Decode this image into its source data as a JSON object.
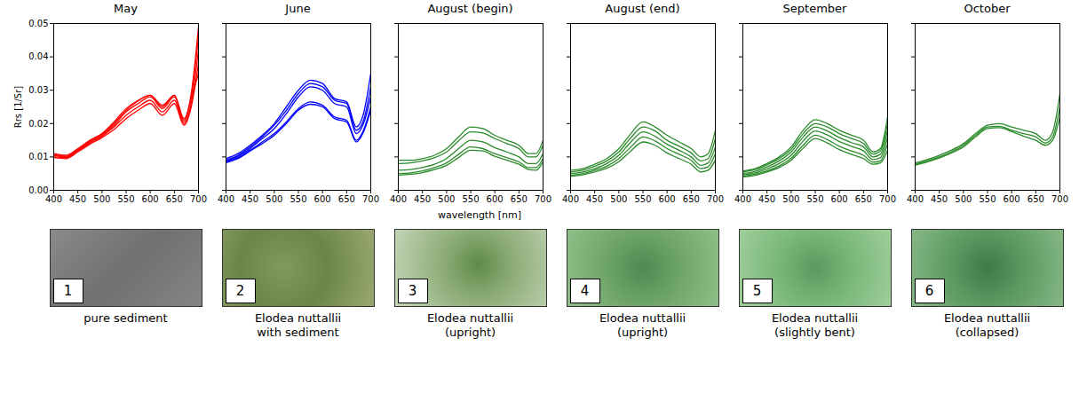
{
  "chart_data": [
    {
      "type": "line",
      "title": "May",
      "ylabel": "Rrs [1/Sr]",
      "x": [
        400,
        425,
        450,
        475,
        500,
        525,
        550,
        575,
        600,
        625,
        650,
        670,
        685,
        700
      ],
      "xlim": [
        400,
        700
      ],
      "xticks": [
        400,
        450,
        500,
        550,
        600,
        650,
        700
      ],
      "ylim": [
        0,
        0.05
      ],
      "yticks": [
        {
          "value": 0,
          "label": "0.00"
        },
        {
          "value": 0.01,
          "label": "0.01"
        },
        {
          "value": 0.02,
          "label": "0.02"
        },
        {
          "value": 0.03,
          "label": "0.03"
        },
        {
          "value": 0.04,
          "label": "0.04"
        },
        {
          "value": 0.05,
          "label": "0.05"
        }
      ],
      "series": [
        {
          "color": "#ff0000",
          "values": [
            0.011,
            0.0105,
            0.0125,
            0.015,
            0.017,
            0.0205,
            0.0245,
            0.027,
            0.0285,
            0.025,
            0.0285,
            0.0215,
            0.029,
            0.049
          ]
        },
        {
          "color": "#ff0000",
          "values": [
            0.0105,
            0.01,
            0.012,
            0.0145,
            0.0165,
            0.0195,
            0.0235,
            0.026,
            0.028,
            0.0245,
            0.028,
            0.0205,
            0.028,
            0.046
          ]
        },
        {
          "color": "#ff0000",
          "values": [
            0.01,
            0.0098,
            0.0118,
            0.0142,
            0.0162,
            0.019,
            0.0225,
            0.025,
            0.027,
            0.0235,
            0.027,
            0.02,
            0.026,
            0.042
          ]
        },
        {
          "color": "#ff0000",
          "values": [
            0.0098,
            0.0095,
            0.0115,
            0.0138,
            0.0158,
            0.0182,
            0.0215,
            0.024,
            0.026,
            0.0225,
            0.026,
            0.0195,
            0.025,
            0.038
          ]
        },
        {
          "color": "#ff0000",
          "values": [
            0.0108,
            0.0102,
            0.0122,
            0.0148,
            0.0168,
            0.02,
            0.024,
            0.0268,
            0.0285,
            0.0255,
            0.0285,
            0.021,
            0.0275,
            0.035
          ]
        }
      ]
    },
    {
      "type": "line",
      "title": "June",
      "tick_labels": "x",
      "x": [
        400,
        425,
        450,
        475,
        500,
        525,
        550,
        575,
        600,
        625,
        650,
        670,
        685,
        700
      ],
      "xlim": [
        400,
        700
      ],
      "xticks": [
        400,
        450,
        500,
        550,
        600,
        650,
        700
      ],
      "ylim": [
        0,
        0.05
      ],
      "yticks": [
        0,
        0.01,
        0.02,
        0.03,
        0.04,
        0.05
      ],
      "series": [
        {
          "color": "#0000ff",
          "values": [
            0.0095,
            0.011,
            0.0135,
            0.0165,
            0.02,
            0.025,
            0.03,
            0.033,
            0.032,
            0.0275,
            0.0265,
            0.019,
            0.023,
            0.035
          ]
        },
        {
          "color": "#0000ff",
          "values": [
            0.009,
            0.0105,
            0.013,
            0.016,
            0.0195,
            0.024,
            0.029,
            0.032,
            0.031,
            0.027,
            0.026,
            0.018,
            0.021,
            0.031
          ]
        },
        {
          "color": "#0000ff",
          "values": [
            0.0088,
            0.0102,
            0.0125,
            0.0155,
            0.0185,
            0.023,
            0.028,
            0.031,
            0.03,
            0.026,
            0.025,
            0.017,
            0.02,
            0.028
          ]
        },
        {
          "color": "#0000ff",
          "values": [
            0.0085,
            0.0098,
            0.012,
            0.0145,
            0.017,
            0.0205,
            0.0245,
            0.0265,
            0.0255,
            0.022,
            0.021,
            0.015,
            0.018,
            0.025
          ]
        },
        {
          "color": "#0000ff",
          "values": [
            0.0083,
            0.0095,
            0.0118,
            0.014,
            0.0165,
            0.02,
            0.024,
            0.0258,
            0.025,
            0.0215,
            0.0205,
            0.0145,
            0.0175,
            0.024
          ]
        }
      ]
    },
    {
      "type": "line",
      "title": "August (begin)",
      "tick_labels": "x",
      "x": [
        400,
        425,
        450,
        475,
        500,
        525,
        550,
        575,
        600,
        625,
        650,
        670,
        685,
        700
      ],
      "xlim": [
        400,
        700
      ],
      "xticks": [
        400,
        450,
        500,
        550,
        600,
        650,
        700
      ],
      "ylim": [
        0,
        0.05
      ],
      "yticks": [
        0,
        0.01,
        0.02,
        0.03,
        0.04,
        0.05
      ],
      "series": [
        {
          "color": "#2a8a2a",
          "values": [
            0.009,
            0.009,
            0.0095,
            0.0105,
            0.0125,
            0.016,
            0.019,
            0.0185,
            0.0165,
            0.015,
            0.0135,
            0.011,
            0.011,
            0.015
          ]
        },
        {
          "color": "#2a8a2a",
          "values": [
            0.008,
            0.0082,
            0.0088,
            0.0098,
            0.0115,
            0.0148,
            0.0175,
            0.0172,
            0.0155,
            0.014,
            0.0125,
            0.01,
            0.01,
            0.0135
          ]
        },
        {
          "color": "#2a8a2a",
          "values": [
            0.006,
            0.0062,
            0.0068,
            0.0078,
            0.0095,
            0.0125,
            0.015,
            0.0145,
            0.0128,
            0.0115,
            0.01,
            0.008,
            0.008,
            0.011
          ]
        },
        {
          "color": "#2a8a2a",
          "values": [
            0.005,
            0.0052,
            0.0058,
            0.0068,
            0.0082,
            0.0108,
            0.013,
            0.0125,
            0.011,
            0.0098,
            0.0085,
            0.0068,
            0.0068,
            0.0095
          ]
        },
        {
          "color": "#2a8a2a",
          "values": [
            0.0045,
            0.0048,
            0.0053,
            0.0062,
            0.0075,
            0.0098,
            0.012,
            0.0118,
            0.0102,
            0.009,
            0.0078,
            0.0062,
            0.006,
            0.0085
          ]
        }
      ]
    },
    {
      "type": "line",
      "title": "August (end)",
      "tick_labels": "x",
      "x": [
        400,
        425,
        450,
        475,
        500,
        525,
        550,
        575,
        600,
        625,
        650,
        670,
        685,
        700
      ],
      "xlim": [
        400,
        700
      ],
      "xticks": [
        400,
        450,
        500,
        550,
        600,
        650,
        700
      ],
      "ylim": [
        0,
        0.05
      ],
      "yticks": [
        0,
        0.01,
        0.02,
        0.03,
        0.04,
        0.05
      ],
      "series": [
        {
          "color": "#2a8a2a",
          "values": [
            0.006,
            0.0065,
            0.0078,
            0.0095,
            0.0125,
            0.017,
            0.0205,
            0.019,
            0.0165,
            0.0145,
            0.0125,
            0.01,
            0.011,
            0.018
          ]
        },
        {
          "color": "#2a8a2a",
          "values": [
            0.0055,
            0.006,
            0.0072,
            0.0088,
            0.0115,
            0.0158,
            0.019,
            0.0178,
            0.015,
            0.0132,
            0.0112,
            0.0088,
            0.0095,
            0.0155
          ]
        },
        {
          "color": "#2a8a2a",
          "values": [
            0.005,
            0.0055,
            0.0065,
            0.008,
            0.0105,
            0.0145,
            0.0175,
            0.0162,
            0.0138,
            0.012,
            0.01,
            0.0075,
            0.0082,
            0.013
          ]
        },
        {
          "color": "#2a8a2a",
          "values": [
            0.0045,
            0.005,
            0.006,
            0.0072,
            0.0095,
            0.013,
            0.016,
            0.0148,
            0.0125,
            0.0108,
            0.009,
            0.0065,
            0.007,
            0.011
          ]
        },
        {
          "color": "#2a8a2a",
          "values": [
            0.0042,
            0.0046,
            0.0055,
            0.0066,
            0.0086,
            0.0118,
            0.0145,
            0.0135,
            0.0112,
            0.0095,
            0.0078,
            0.0055,
            0.006,
            0.009
          ]
        }
      ]
    },
    {
      "type": "line",
      "title": "September",
      "tick_labels": "x",
      "x": [
        400,
        425,
        450,
        475,
        500,
        525,
        550,
        575,
        600,
        625,
        650,
        670,
        685,
        700
      ],
      "xlim": [
        400,
        700
      ],
      "xticks": [
        400,
        450,
        500,
        550,
        600,
        650,
        700
      ],
      "ylim": [
        0,
        0.05
      ],
      "yticks": [
        0,
        0.01,
        0.02,
        0.03,
        0.04,
        0.05
      ],
      "series": [
        {
          "color": "#2a8a2a",
          "values": [
            0.0058,
            0.0065,
            0.008,
            0.01,
            0.013,
            0.018,
            0.0212,
            0.02,
            0.018,
            0.0165,
            0.015,
            0.0115,
            0.0125,
            0.022
          ]
        },
        {
          "color": "#2a8a2a",
          "values": [
            0.0055,
            0.0062,
            0.0076,
            0.0095,
            0.0123,
            0.017,
            0.02,
            0.019,
            0.017,
            0.0155,
            0.014,
            0.0108,
            0.0118,
            0.02
          ]
        },
        {
          "color": "#2a8a2a",
          "values": [
            0.005,
            0.0057,
            0.007,
            0.0088,
            0.0115,
            0.016,
            0.019,
            0.0178,
            0.0158,
            0.0143,
            0.013,
            0.01,
            0.0108,
            0.018
          ]
        },
        {
          "color": "#2a8a2a",
          "values": [
            0.0046,
            0.0052,
            0.0064,
            0.008,
            0.0105,
            0.0148,
            0.0178,
            0.0166,
            0.0146,
            0.0132,
            0.0118,
            0.0092,
            0.0098,
            0.016
          ]
        },
        {
          "color": "#2a8a2a",
          "values": [
            0.0042,
            0.0048,
            0.0058,
            0.0073,
            0.0096,
            0.0135,
            0.0165,
            0.0152,
            0.0132,
            0.0118,
            0.0105,
            0.0084,
            0.0088,
            0.014
          ]
        },
        {
          "color": "#2a8a2a",
          "values": [
            0.004,
            0.0045,
            0.0055,
            0.0068,
            0.009,
            0.0126,
            0.0155,
            0.0142,
            0.0122,
            0.0108,
            0.0095,
            0.0078,
            0.0082,
            0.012
          ]
        }
      ]
    },
    {
      "type": "line",
      "title": "October",
      "tick_labels": "x",
      "x": [
        400,
        425,
        450,
        475,
        500,
        525,
        550,
        575,
        600,
        625,
        650,
        670,
        685,
        700
      ],
      "xlim": [
        400,
        700
      ],
      "xticks": [
        400,
        450,
        500,
        550,
        600,
        650,
        700
      ],
      "ylim": [
        0,
        0.05
      ],
      "yticks": [
        0,
        0.01,
        0.02,
        0.03,
        0.04,
        0.05
      ],
      "series": [
        {
          "color": "#2a8a2a",
          "values": [
            0.0082,
            0.0092,
            0.0105,
            0.012,
            0.014,
            0.017,
            0.0195,
            0.02,
            0.019,
            0.018,
            0.017,
            0.015,
            0.0175,
            0.029
          ]
        },
        {
          "color": "#2a8a2a",
          "values": [
            0.0078,
            0.0088,
            0.01,
            0.0115,
            0.0135,
            0.0165,
            0.019,
            0.0192,
            0.018,
            0.017,
            0.016,
            0.0142,
            0.016,
            0.025
          ]
        },
        {
          "color": "#2a8a2a",
          "values": [
            0.0075,
            0.0085,
            0.0097,
            0.0112,
            0.013,
            0.016,
            0.0185,
            0.0188,
            0.0176,
            0.0162,
            0.015,
            0.0135,
            0.015,
            0.022
          ]
        }
      ]
    }
  ],
  "xlabel": "wavelength [nm]",
  "photos": [
    {
      "number": "1",
      "caption": [
        "pure sediment"
      ]
    },
    {
      "number": "2",
      "caption": [
        "Elodea nuttallii",
        "with sediment"
      ]
    },
    {
      "number": "3",
      "caption": [
        "Elodea nuttallii",
        "(upright)"
      ]
    },
    {
      "number": "4",
      "caption": [
        "Elodea nuttallii",
        "(upright)"
      ]
    },
    {
      "number": "5",
      "caption": [
        "Elodea nuttallii",
        "(slightly bent)"
      ]
    },
    {
      "number": "6",
      "caption": [
        "Elodea nuttallii",
        "(collapsed)"
      ]
    }
  ]
}
